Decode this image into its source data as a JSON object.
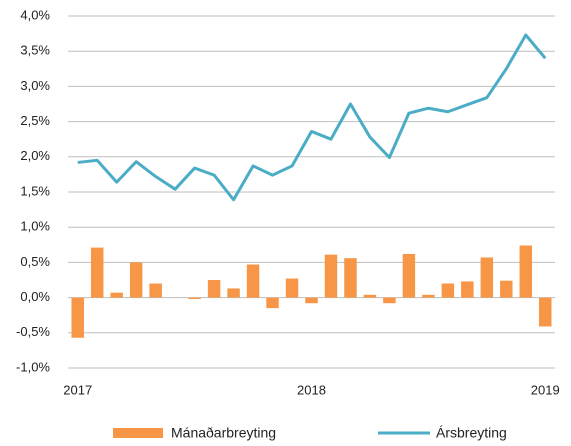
{
  "chart_data": {
    "type": "bar_line",
    "categories": [
      "2017",
      null,
      null,
      null,
      null,
      null,
      null,
      null,
      null,
      null,
      null,
      null,
      "2018",
      null,
      null,
      null,
      null,
      null,
      null,
      null,
      null,
      null,
      null,
      null,
      "2019"
    ],
    "series": [
      {
        "name": "Mánaðarbreyting",
        "type": "bar",
        "color": "#f79646",
        "values": [
          -0.57,
          0.71,
          0.07,
          0.5,
          0.2,
          0.0,
          -0.02,
          0.25,
          0.13,
          0.47,
          -0.15,
          0.27,
          -0.08,
          0.61,
          0.56,
          0.04,
          -0.08,
          0.62,
          0.04,
          0.2,
          0.23,
          0.57,
          0.24,
          0.74,
          -0.41
        ]
      },
      {
        "name": "Ársbreyting",
        "type": "line",
        "color": "#4bacc6",
        "values": [
          1.92,
          1.95,
          1.64,
          1.93,
          1.72,
          1.54,
          1.84,
          1.74,
          1.39,
          1.87,
          1.74,
          1.87,
          2.36,
          2.25,
          2.75,
          2.28,
          1.99,
          2.62,
          2.69,
          2.64,
          2.74,
          2.84,
          3.25,
          3.73,
          3.4
        ]
      }
    ],
    "ylim": [
      -1,
      4
    ],
    "yticks": [
      {
        "value": -1,
        "label": "-1,0%"
      },
      {
        "value": -0.5,
        "label": "-0,5%"
      },
      {
        "value": 0,
        "label": "0,0%"
      },
      {
        "value": 0.5,
        "label": "0,5%"
      },
      {
        "value": 1,
        "label": "1,0%"
      },
      {
        "value": 1.5,
        "label": "1,5%"
      },
      {
        "value": 2,
        "label": "2,0%"
      },
      {
        "value": 2.5,
        "label": "2,5%"
      },
      {
        "value": 3,
        "label": "3,0%"
      },
      {
        "value": 3.5,
        "label": "3,5%"
      },
      {
        "value": 4,
        "label": "4,0%"
      }
    ],
    "grid": true,
    "legend": "bottom"
  }
}
